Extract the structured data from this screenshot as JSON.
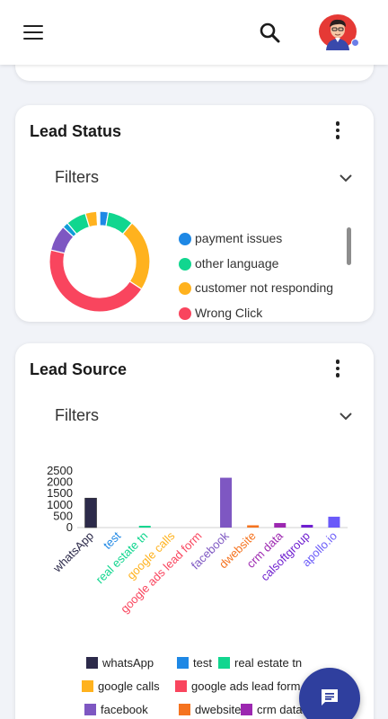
{
  "header": {
    "menu_icon": "hamburger-icon",
    "search_icon": "search-icon",
    "avatar_icon": "user-avatar",
    "status_color": "#6a7de8"
  },
  "lead_status": {
    "title": "Lead Status",
    "filters_label": "Filters",
    "chart_data": {
      "type": "pie",
      "variant": "donut",
      "slices": [
        {
          "label": "payment issues",
          "color": "#1e88e5",
          "value": 3
        },
        {
          "label": "other language",
          "color": "#11d68f",
          "value": 9
        },
        {
          "label": "customer not responding",
          "color": "#ffb21e",
          "value": 25
        },
        {
          "label": "Wrong Click",
          "color": "#f9455e",
          "value": 48
        },
        {
          "label": "",
          "color": "#7e57c2",
          "value": 9
        },
        {
          "label": "",
          "color": "#0f9dd8",
          "value": 2
        },
        {
          "label": "",
          "color": "#11d68f",
          "value": 7
        },
        {
          "label": "",
          "color": "#ffb21e",
          "value": 4
        },
        {
          "label": "",
          "color": "#ffffff",
          "value": 1
        }
      ],
      "legend": [
        "payment issues",
        "other language",
        "customer not responding",
        "Wrong Click"
      ]
    }
  },
  "lead_source": {
    "title": "Lead Source",
    "filters_label": "Filters",
    "chart_data": {
      "type": "bar",
      "categories": [
        "whatsApp",
        "test",
        "real estate tn",
        "google calls",
        "google ads lead form",
        "facebook",
        "dwebsite",
        "crm data",
        "calsoftgroup",
        "apollo.io"
      ],
      "colors": [
        "#2c2a4a",
        "#1e88e5",
        "#11d68f",
        "#ffb21e",
        "#f9455e",
        "#7e57c2",
        "#f5731f",
        "#9c27b0",
        "#6f1fd0",
        "#6a5af9"
      ],
      "values": [
        1300,
        0,
        20,
        0,
        0,
        2200,
        100,
        200,
        120,
        480
      ],
      "yticks": [
        0,
        500,
        1000,
        1500,
        2000,
        2500
      ],
      "ylim": [
        0,
        2500
      ]
    },
    "legend": [
      "whatsApp",
      "test",
      "real estate tn",
      "google calls",
      "google ads lead form",
      "facebook",
      "dwebsite",
      "crm data"
    ]
  },
  "fab": {
    "icon": "chat-icon"
  }
}
